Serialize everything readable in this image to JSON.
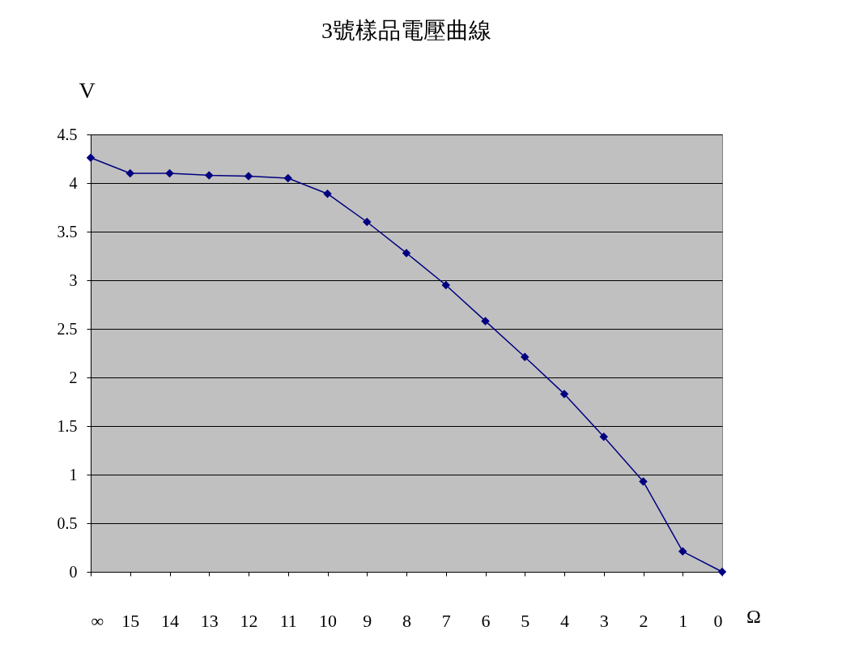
{
  "chart_data": {
    "type": "line",
    "title": "3號樣品電壓曲線",
    "xlabel": "Ω",
    "ylabel": "V",
    "categories": [
      "∞",
      "15",
      "14",
      "13",
      "12",
      "11",
      "10",
      "9",
      "8",
      "7",
      "6",
      "5",
      "4",
      "3",
      "2",
      "1",
      "0"
    ],
    "series": [
      {
        "color": "#000080",
        "values": [
          4.26,
          4.1,
          4.1,
          4.08,
          4.07,
          4.05,
          3.89,
          3.6,
          3.28,
          2.95,
          2.58,
          2.21,
          1.83,
          1.39,
          0.93,
          0.21,
          0
        ]
      }
    ],
    "ylim": [
      0,
      4.5
    ],
    "yticks": [
      0,
      0.5,
      1,
      1.5,
      2,
      2.5,
      3,
      3.5,
      4,
      4.5
    ],
    "grid": "y",
    "marker": "diamond",
    "line_style": "solid"
  }
}
